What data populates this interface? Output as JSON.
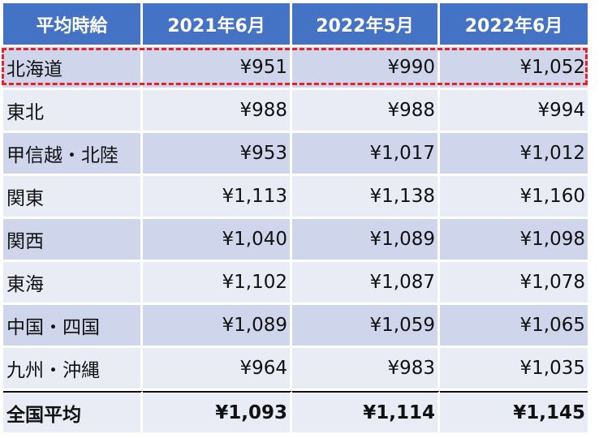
{
  "header": {
    "label": "平均時給",
    "columns": [
      "2021年6月",
      "2022年5月",
      "2022年6月"
    ]
  },
  "rows": [
    {
      "region": "北海道",
      "values": [
        "¥951",
        "¥990",
        "¥1,052"
      ]
    },
    {
      "region": "東北",
      "values": [
        "¥988",
        "¥988",
        "¥994"
      ]
    },
    {
      "region": "甲信越・北陸",
      "values": [
        "¥953",
        "¥1,017",
        "¥1,012"
      ]
    },
    {
      "region": "関東",
      "values": [
        "¥1,113",
        "¥1,138",
        "¥1,160"
      ]
    },
    {
      "region": "関西",
      "values": [
        "¥1,040",
        "¥1,089",
        "¥1,098"
      ]
    },
    {
      "region": "東海",
      "values": [
        "¥1,102",
        "¥1,087",
        "¥1,078"
      ]
    },
    {
      "region": "中国・四国",
      "values": [
        "¥1,089",
        "¥1,059",
        "¥1,065"
      ]
    },
    {
      "region": "九州・沖縄",
      "values": [
        "¥964",
        "¥983",
        "¥1,035"
      ]
    }
  ],
  "total": {
    "region": "全国平均",
    "values": [
      "¥1,093",
      "¥1,114",
      "¥1,145"
    ]
  },
  "colors": {
    "header_bg": "#4472c4",
    "row_odd_bg": "#cfd5ea",
    "row_even_bg": "#e9ebf5",
    "highlight_border": "#e8202a"
  }
}
